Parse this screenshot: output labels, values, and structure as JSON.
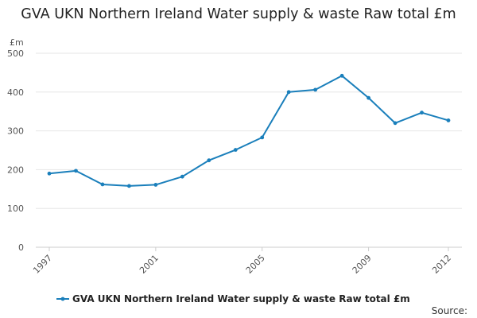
{
  "chart_data": {
    "type": "line",
    "title": "GVA UKN Northern Ireland Water supply & waste Raw total £m",
    "ylabel": "£m",
    "xlabel": "",
    "ylim": [
      0,
      500
    ],
    "yticks": [
      0,
      100,
      200,
      300,
      400,
      500
    ],
    "xlim": [
      1997,
      2012
    ],
    "xticks": [
      1997,
      2001,
      2005,
      2009,
      2012
    ],
    "grid": true,
    "legend_position": "bottom",
    "series": [
      {
        "name": "GVA UKN Northern Ireland Water supply & waste Raw total £m",
        "color": "#1a7fbb",
        "x": [
          1997,
          1998,
          1999,
          2000,
          2001,
          2002,
          2003,
          2004,
          2005,
          2006,
          2007,
          2008,
          2009,
          2010,
          2011,
          2012
        ],
        "values": [
          190,
          197,
          162,
          158,
          161,
          182,
          224,
          251,
          283,
          400,
          406,
          442,
          385,
          320,
          347,
          327
        ]
      }
    ],
    "source_label": "Source:"
  }
}
